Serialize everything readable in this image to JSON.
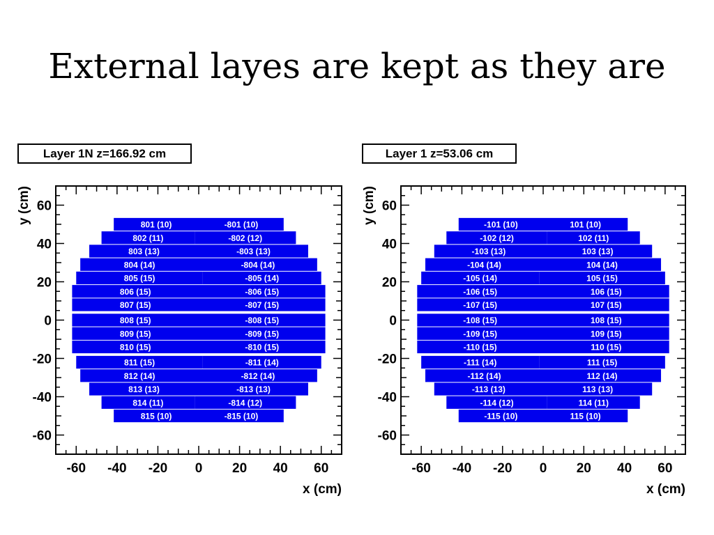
{
  "slide": {
    "title": "External layes are kept as they are"
  },
  "chart_data": [
    {
      "type": "bar",
      "title": "Layer 1N z=166.92 cm",
      "xlabel": "x (cm)",
      "ylabel": "y (cm)",
      "xlim": [
        -70,
        70
      ],
      "ylim": [
        -70,
        70
      ],
      "xticks": [
        "-60",
        "-40",
        "-20",
        "0",
        "20",
        "40",
        "60"
      ],
      "yticks": [
        "60",
        "40",
        "20",
        "0",
        "-20",
        "-40",
        "-60"
      ],
      "grid": false,
      "bar_color": "#0000ee",
      "rows": [
        {
          "y": 50,
          "left": {
            "x0": -41.6,
            "x1": 0,
            "label": "801 (10)"
          },
          "right": {
            "x0": 0,
            "x1": 41.6,
            "label": "-801 (10)"
          }
        },
        {
          "y": 43,
          "left": {
            "x0": -47.6,
            "x1": -2,
            "label": "802 (11)"
          },
          "right": {
            "x0": -2,
            "x1": 47.6,
            "label": "-802 (12)"
          }
        },
        {
          "y": 36,
          "left": {
            "x0": -53.6,
            "x1": 0,
            "label": "803 (13)"
          },
          "right": {
            "x0": 0,
            "x1": 53.6,
            "label": "-803 (13)"
          }
        },
        {
          "y": 29,
          "left": {
            "x0": -58,
            "x1": 0,
            "label": "804 (14)"
          },
          "right": {
            "x0": 0,
            "x1": 58,
            "label": "-804 (14)"
          }
        },
        {
          "y": 22,
          "left": {
            "x0": -60,
            "x1": 2,
            "label": "805 (15)"
          },
          "right": {
            "x0": 2,
            "x1": 60,
            "label": "-805 (14)"
          }
        },
        {
          "y": 15,
          "left": {
            "x0": -62,
            "x1": 0,
            "label": "806 (15)"
          },
          "right": {
            "x0": 0,
            "x1": 62,
            "label": "-806 (15)"
          }
        },
        {
          "y": 8,
          "left": {
            "x0": -62,
            "x1": 0,
            "label": "807 (15)"
          },
          "right": {
            "x0": 0,
            "x1": 62,
            "label": "-807 (15)"
          }
        },
        {
          "y": 0,
          "left": {
            "x0": -62,
            "x1": 0,
            "label": "808 (15)"
          },
          "right": {
            "x0": 0,
            "x1": 62,
            "label": "-808 (15)"
          }
        },
        {
          "y": -7,
          "left": {
            "x0": -62,
            "x1": 0,
            "label": "809 (15)"
          },
          "right": {
            "x0": 0,
            "x1": 62,
            "label": "-809 (15)"
          }
        },
        {
          "y": -14,
          "left": {
            "x0": -62,
            "x1": 0,
            "label": "810 (15)"
          },
          "right": {
            "x0": 0,
            "x1": 62,
            "label": "-810 (15)"
          }
        },
        {
          "y": -22,
          "left": {
            "x0": -60,
            "x1": 2,
            "label": "811 (15)"
          },
          "right": {
            "x0": 2,
            "x1": 60,
            "label": "-811 (14)"
          }
        },
        {
          "y": -29,
          "left": {
            "x0": -58,
            "x1": 0,
            "label": "812 (14)"
          },
          "right": {
            "x0": 0,
            "x1": 58,
            "label": "-812 (14)"
          }
        },
        {
          "y": -36,
          "left": {
            "x0": -53.6,
            "x1": 0,
            "label": "813 (13)"
          },
          "right": {
            "x0": 0,
            "x1": 53.6,
            "label": "-813 (13)"
          }
        },
        {
          "y": -43,
          "left": {
            "x0": -47.6,
            "x1": -2,
            "label": "814 (11)"
          },
          "right": {
            "x0": -2,
            "x1": 47.6,
            "label": "-814 (12)"
          }
        },
        {
          "y": -50,
          "left": {
            "x0": -41.6,
            "x1": 0,
            "label": "815 (10)"
          },
          "right": {
            "x0": 0,
            "x1": 41.6,
            "label": "-815 (10)"
          }
        }
      ]
    },
    {
      "type": "bar",
      "title": "Layer 1 z=53.06 cm",
      "xlabel": "x (cm)",
      "ylabel": "y (cm)",
      "xlim": [
        -70,
        70
      ],
      "ylim": [
        -70,
        70
      ],
      "xticks": [
        "-60",
        "-40",
        "-20",
        "0",
        "20",
        "40",
        "60"
      ],
      "yticks": [
        "60",
        "40",
        "20",
        "0",
        "-20",
        "-40",
        "-60"
      ],
      "grid": false,
      "bar_color": "#0000ee",
      "rows": [
        {
          "y": 50,
          "left": {
            "x0": -41.6,
            "x1": 0,
            "label": "-101 (10)"
          },
          "right": {
            "x0": 0,
            "x1": 41.6,
            "label": "101 (10)"
          }
        },
        {
          "y": 43,
          "left": {
            "x0": -47.6,
            "x1": 2,
            "label": "-102 (12)"
          },
          "right": {
            "x0": 2,
            "x1": 47.6,
            "label": "102 (11)"
          }
        },
        {
          "y": 36,
          "left": {
            "x0": -53.6,
            "x1": 0,
            "label": "-103 (13)"
          },
          "right": {
            "x0": 0,
            "x1": 53.6,
            "label": "103 (13)"
          }
        },
        {
          "y": 29,
          "left": {
            "x0": -58,
            "x1": 0,
            "label": "-104 (14)"
          },
          "right": {
            "x0": 0,
            "x1": 58,
            "label": "104 (14)"
          }
        },
        {
          "y": 22,
          "left": {
            "x0": -60,
            "x1": -2,
            "label": "-105 (14)"
          },
          "right": {
            "x0": -2,
            "x1": 60,
            "label": "105 (15)"
          }
        },
        {
          "y": 15,
          "left": {
            "x0": -62,
            "x1": 0,
            "label": "-106 (15)"
          },
          "right": {
            "x0": 0,
            "x1": 62,
            "label": "106 (15)"
          }
        },
        {
          "y": 8,
          "left": {
            "x0": -62,
            "x1": 0,
            "label": "-107 (15)"
          },
          "right": {
            "x0": 0,
            "x1": 62,
            "label": "107 (15)"
          }
        },
        {
          "y": 0,
          "left": {
            "x0": -62,
            "x1": 0,
            "label": "-108 (15)"
          },
          "right": {
            "x0": 0,
            "x1": 62,
            "label": "108 (15)"
          }
        },
        {
          "y": -7,
          "left": {
            "x0": -62,
            "x1": 0,
            "label": "-109 (15)"
          },
          "right": {
            "x0": 0,
            "x1": 62,
            "label": "109 (15)"
          }
        },
        {
          "y": -14,
          "left": {
            "x0": -62,
            "x1": 0,
            "label": "-110 (15)"
          },
          "right": {
            "x0": 0,
            "x1": 62,
            "label": "110 (15)"
          }
        },
        {
          "y": -22,
          "left": {
            "x0": -60,
            "x1": -2,
            "label": "-111 (14)"
          },
          "right": {
            "x0": -2,
            "x1": 60,
            "label": "111 (15)"
          }
        },
        {
          "y": -29,
          "left": {
            "x0": -58,
            "x1": 0,
            "label": "-112 (14)"
          },
          "right": {
            "x0": 0,
            "x1": 58,
            "label": "112 (14)"
          }
        },
        {
          "y": -36,
          "left": {
            "x0": -53.6,
            "x1": 0,
            "label": "-113 (13)"
          },
          "right": {
            "x0": 0,
            "x1": 53.6,
            "label": "113 (13)"
          }
        },
        {
          "y": -43,
          "left": {
            "x0": -47.6,
            "x1": 2,
            "label": "-114 (12)"
          },
          "right": {
            "x0": 2,
            "x1": 47.6,
            "label": "114 (11)"
          }
        },
        {
          "y": -50,
          "left": {
            "x0": -41.6,
            "x1": 0,
            "label": "-115 (10)"
          },
          "right": {
            "x0": 0,
            "x1": 41.6,
            "label": "115 (10)"
          }
        }
      ]
    }
  ]
}
